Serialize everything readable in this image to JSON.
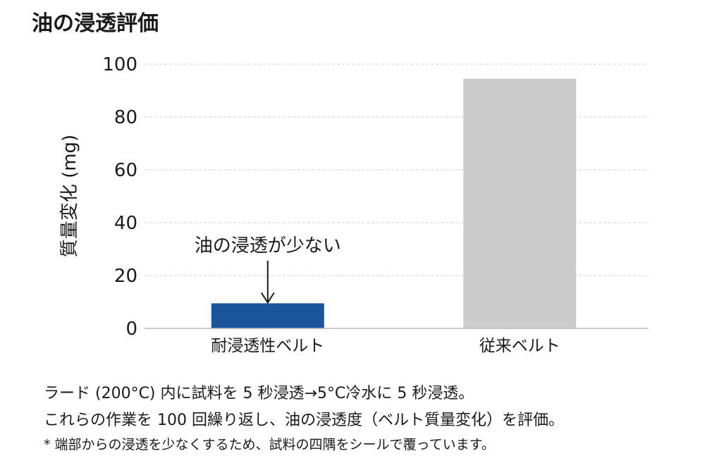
{
  "title": "油の浸透評価",
  "chart_data": {
    "type": "bar",
    "categories": [
      "耐浸透性ベルト",
      "従来ベルト"
    ],
    "values": [
      9.5,
      94.5
    ],
    "colors": [
      "#1a549b",
      "#cccccc"
    ],
    "ylabel": "質量変化 (mg)",
    "ylim": [
      0,
      100
    ],
    "yticks": [
      0,
      20,
      40,
      60,
      80,
      100
    ],
    "grid": true,
    "annotation": {
      "text": "油の浸透が少ない",
      "category_index": 0
    }
  },
  "notes": [
    "ラード (200°C) 内に試料を 5 秒浸透→5°C冷水に 5 秒浸透。",
    "これらの作業を 100 回繰り返し、油の浸透度（ベルト質量変化）を評価。",
    "* 端部からの浸透を少なくするため、試料の四隅をシールで覆っています。"
  ]
}
